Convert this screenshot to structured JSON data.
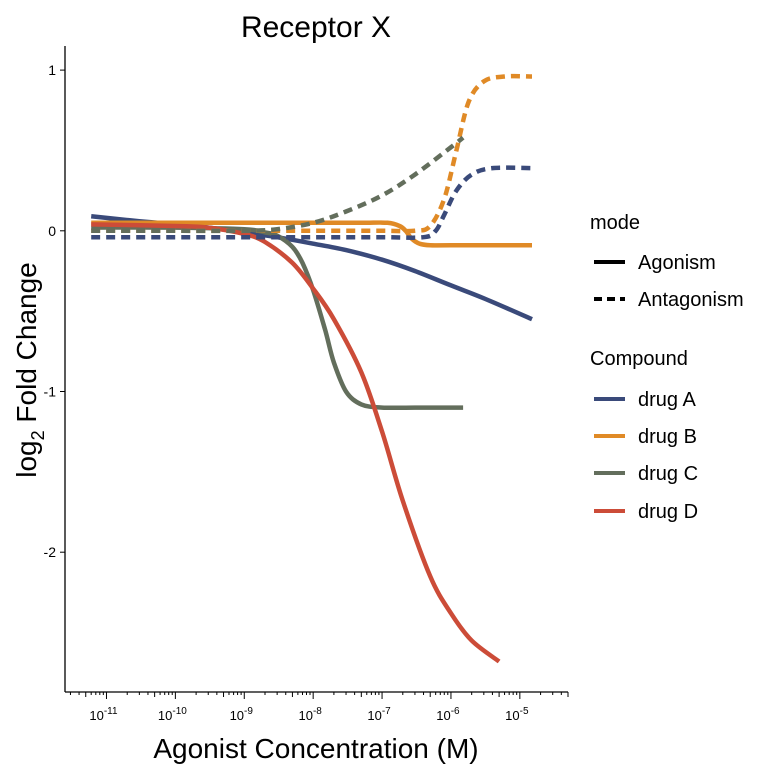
{
  "chart_data": {
    "type": "line",
    "title": "Receptor X",
    "xlabel": "Agonist Concentration (M)",
    "ylabel_main": "log",
    "ylabel_sub": "2",
    "ylabel_rest": " Fold Change",
    "x_scale": "log10",
    "xlim": [
      2.5e-12,
      5e-05
    ],
    "ylim": [
      -2.87,
      1.15
    ],
    "x_ticks": [
      {
        "value": 1e-11,
        "base": "10",
        "exp": "-11"
      },
      {
        "value": 1e-10,
        "base": "10",
        "exp": "-10"
      },
      {
        "value": 1e-09,
        "base": "10",
        "exp": "-9"
      },
      {
        "value": 1e-08,
        "base": "10",
        "exp": "-8"
      },
      {
        "value": 1e-07,
        "base": "10",
        "exp": "-7"
      },
      {
        "value": 1e-06,
        "base": "10",
        "exp": "-6"
      },
      {
        "value": 1e-05,
        "base": "10",
        "exp": "-5"
      }
    ],
    "y_ticks": [
      1,
      0,
      -1,
      -2
    ],
    "grid": false,
    "legend_position": "right",
    "legend": {
      "mode_title": "mode",
      "mode_entries": [
        {
          "label": "Agonism",
          "dash": "solid"
        },
        {
          "label": "Antagonism",
          "dash": "dashed"
        }
      ],
      "compound_title": "Compound",
      "compound_entries": [
        {
          "label": "drug A",
          "color": "#3a4a7a"
        },
        {
          "label": "drug B",
          "color": "#e08a26"
        },
        {
          "label": "drug C",
          "color": "#636e5c"
        },
        {
          "label": "drug D",
          "color": "#cc4c38"
        }
      ]
    },
    "series": [
      {
        "compound": "drug A",
        "mode": "Agonism",
        "x": [
          6e-12,
          1e-11,
          3e-11,
          1e-10,
          3e-10,
          1e-09,
          3e-09,
          1e-08,
          3e-08,
          1e-07,
          3e-07,
          1e-06,
          3e-06,
          1.5e-05
        ],
        "y": [
          0.09,
          0.08,
          0.06,
          0.04,
          0.02,
          -0.01,
          -0.04,
          -0.08,
          -0.12,
          -0.18,
          -0.25,
          -0.34,
          -0.42,
          -0.55
        ]
      },
      {
        "compound": "drug B",
        "mode": "Agonism",
        "x": [
          6e-12,
          1e-10,
          1e-09,
          1e-08,
          5e-08,
          1.2e-07,
          1.8e-07,
          2.2e-07,
          2.7e-07,
          3.5e-07,
          5e-07,
          1e-06,
          1.5e-05
        ],
        "y": [
          0.05,
          0.05,
          0.05,
          0.05,
          0.05,
          0.05,
          0.03,
          0.0,
          -0.05,
          -0.08,
          -0.09,
          -0.09,
          -0.09
        ]
      },
      {
        "compound": "drug C",
        "mode": "Agonism",
        "x": [
          6e-12,
          1e-10,
          1e-09,
          2e-09,
          3e-09,
          5e-09,
          7e-09,
          1e-08,
          1.5e-08,
          2e-08,
          3e-08,
          5e-08,
          1e-07,
          3e-07,
          1.5e-06
        ],
        "y": [
          0.02,
          0.02,
          0.01,
          -0.01,
          -0.03,
          -0.1,
          -0.2,
          -0.37,
          -0.62,
          -0.82,
          -1.0,
          -1.08,
          -1.1,
          -1.1,
          -1.1
        ]
      },
      {
        "compound": "drug D",
        "mode": "Agonism",
        "x": [
          6e-12,
          1e-10,
          3e-10,
          1e-09,
          2e-09,
          5e-09,
          1e-08,
          2e-08,
          5e-08,
          1e-07,
          2e-07,
          5e-07,
          1e-06,
          2e-06,
          5e-06
        ],
        "y": [
          0.04,
          0.03,
          0.02,
          -0.02,
          -0.07,
          -0.2,
          -0.36,
          -0.55,
          -0.88,
          -1.25,
          -1.68,
          -2.15,
          -2.38,
          -2.55,
          -2.68
        ]
      },
      {
        "compound": "drug A",
        "mode": "Antagonism",
        "x": [
          6e-12,
          1e-10,
          1e-09,
          1e-08,
          1e-07,
          4e-07,
          6e-07,
          8e-07,
          1.2e-06,
          2e-06,
          4e-06,
          1.5e-05
        ],
        "y": [
          -0.04,
          -0.04,
          -0.04,
          -0.04,
          -0.04,
          -0.04,
          0.0,
          0.1,
          0.25,
          0.35,
          0.39,
          0.39
        ]
      },
      {
        "compound": "drug B",
        "mode": "Antagonism",
        "x": [
          6e-12,
          1e-10,
          1e-09,
          1e-08,
          1e-07,
          3e-07,
          5e-07,
          8e-07,
          1.2e-06,
          1.8e-06,
          3e-06,
          6e-06,
          1.5e-05
        ],
        "y": [
          0.0,
          0.0,
          0.0,
          0.0,
          0.0,
          0.0,
          0.03,
          0.2,
          0.5,
          0.8,
          0.93,
          0.96,
          0.96
        ]
      },
      {
        "compound": "drug C",
        "mode": "Antagonism",
        "x": [
          6e-12,
          1e-10,
          1e-09,
          3e-09,
          1e-08,
          3e-08,
          1e-07,
          3e-07,
          1e-06,
          1.5e-06
        ],
        "y": [
          0.0,
          0.0,
          0.0,
          0.01,
          0.05,
          0.12,
          0.22,
          0.35,
          0.52,
          0.58
        ]
      }
    ]
  }
}
